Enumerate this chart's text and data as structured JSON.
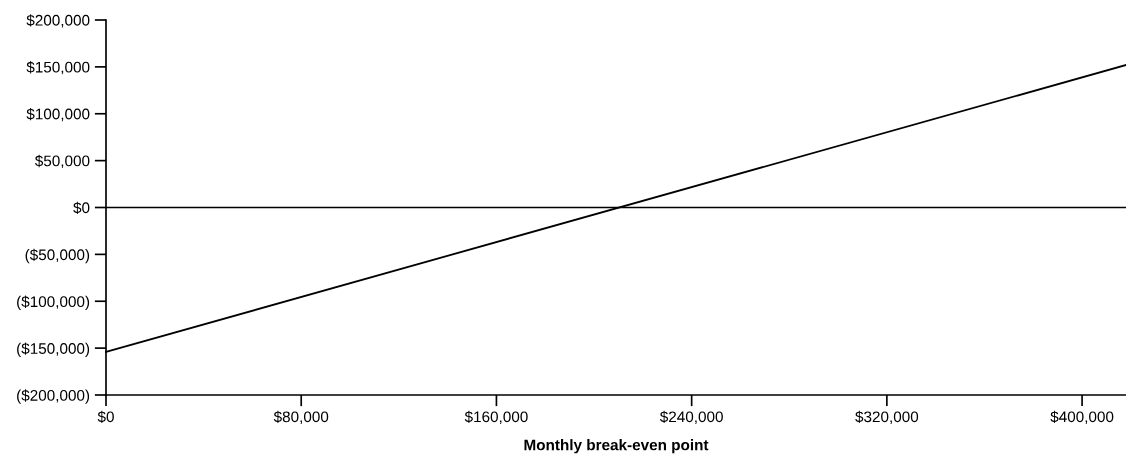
{
  "chart_data": {
    "type": "line",
    "xlabel": "Monthly break-even point",
    "x": [
      0,
      418000
    ],
    "series": [
      {
        "color": "#000000",
        "values": [
          -154000,
          152000
        ]
      }
    ],
    "xlim": [
      0,
      418000
    ],
    "xticks": [
      {
        "value": 0,
        "label": "$0"
      },
      {
        "value": 80000,
        "label": "$80,000"
      },
      {
        "value": 160000,
        "label": "$160,000"
      },
      {
        "value": 240000,
        "label": "$240,000"
      },
      {
        "value": 320000,
        "label": "$320,000"
      },
      {
        "value": 400000,
        "label": "$400,000"
      }
    ],
    "ylim": [
      -200000,
      200000
    ],
    "yticks": [
      {
        "value": -200000,
        "label": "($200,000)"
      },
      {
        "value": -150000,
        "label": "($150,000)"
      },
      {
        "value": -100000,
        "label": "($100,000)"
      },
      {
        "value": -50000,
        "label": "($50,000)"
      },
      {
        "value": 0,
        "label": "$0"
      },
      {
        "value": 50000,
        "label": "$50,000"
      },
      {
        "value": 100000,
        "label": "$100,000"
      },
      {
        "value": 150000,
        "label": "$150,000"
      },
      {
        "value": 200000,
        "label": "$200,000"
      }
    ],
    "ref_lines": [
      {
        "axis": "y",
        "value": 0,
        "color": "#000000"
      }
    ],
    "grid": false,
    "legend": false
  }
}
